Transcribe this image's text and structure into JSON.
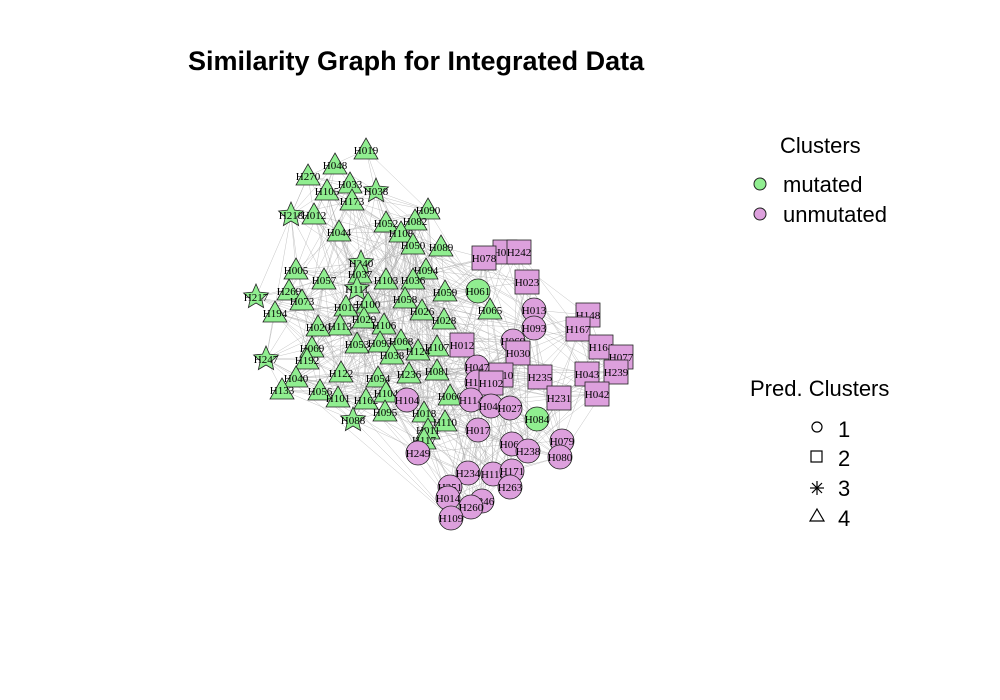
{
  "title": "Similarity Graph for Integrated Data",
  "colors": {
    "mutated": "#90EE90",
    "unmutated": "#DDA0DD",
    "edge": "#a9a9a9",
    "stroke": "#222222"
  },
  "legend_clusters": {
    "title": "Clusters",
    "items": [
      {
        "label": "mutated",
        "color": "#90EE90"
      },
      {
        "label": "unmutated",
        "color": "#DDA0DD"
      }
    ]
  },
  "legend_pred": {
    "title": "Pred. Clusters",
    "items": [
      {
        "label": "1",
        "shape": "circle"
      },
      {
        "label": "2",
        "shape": "square"
      },
      {
        "label": "3",
        "shape": "star"
      },
      {
        "label": "4",
        "shape": "triangle"
      }
    ]
  },
  "chart_data": {
    "type": "network",
    "nodes": [
      {
        "id": "H019",
        "cluster": "mutated",
        "pred": "4"
      },
      {
        "id": "H048",
        "cluster": "mutated",
        "pred": "4"
      },
      {
        "id": "H270",
        "cluster": "mutated",
        "pred": "4"
      },
      {
        "id": "H033",
        "cluster": "mutated",
        "pred": "4"
      },
      {
        "id": "H105",
        "cluster": "mutated",
        "pred": "4"
      },
      {
        "id": "H038",
        "cluster": "mutated",
        "pred": "3"
      },
      {
        "id": "H173",
        "cluster": "mutated",
        "pred": "4"
      },
      {
        "id": "H090",
        "cluster": "mutated",
        "pred": "4"
      },
      {
        "id": "H218",
        "cluster": "mutated",
        "pred": "3"
      },
      {
        "id": "H012",
        "cluster": "mutated",
        "pred": "4"
      },
      {
        "id": "H052",
        "cluster": "mutated",
        "pred": "4"
      },
      {
        "id": "H082",
        "cluster": "mutated",
        "pred": "4"
      },
      {
        "id": "H108",
        "cluster": "mutated",
        "pred": "4"
      },
      {
        "id": "H044",
        "cluster": "mutated",
        "pred": "4"
      },
      {
        "id": "H050",
        "cluster": "mutated",
        "pred": "4"
      },
      {
        "id": "H089",
        "cluster": "mutated",
        "pred": "4"
      },
      {
        "id": "H240",
        "cluster": "mutated",
        "pred": "3"
      },
      {
        "id": "H094",
        "cluster": "mutated",
        "pred": "4"
      },
      {
        "id": "H005",
        "cluster": "mutated",
        "pred": "4"
      },
      {
        "id": "H037",
        "cluster": "mutated",
        "pred": "4"
      },
      {
        "id": "H103",
        "cluster": "mutated",
        "pred": "4"
      },
      {
        "id": "H036",
        "cluster": "mutated",
        "pred": "4"
      },
      {
        "id": "H057",
        "cluster": "mutated",
        "pred": "4"
      },
      {
        "id": "H269",
        "cluster": "mutated",
        "pred": "4"
      },
      {
        "id": "H111",
        "cluster": "mutated",
        "pred": "3"
      },
      {
        "id": "H217",
        "cluster": "mutated",
        "pred": "3"
      },
      {
        "id": "H073",
        "cluster": "mutated",
        "pred": "4"
      },
      {
        "id": "H058",
        "cluster": "mutated",
        "pred": "4"
      },
      {
        "id": "H059",
        "cluster": "mutated",
        "pred": "4"
      },
      {
        "id": "H061",
        "cluster": "mutated",
        "pred": "1"
      },
      {
        "id": "H194",
        "cluster": "mutated",
        "pred": "4"
      },
      {
        "id": "H100",
        "cluster": "mutated",
        "pred": "4"
      },
      {
        "id": "H015",
        "cluster": "mutated",
        "pred": "4"
      },
      {
        "id": "H026",
        "cluster": "mutated",
        "pred": "4"
      },
      {
        "id": "H065",
        "cluster": "mutated",
        "pred": "4"
      },
      {
        "id": "H029",
        "cluster": "mutated",
        "pred": "4"
      },
      {
        "id": "H028",
        "cluster": "mutated",
        "pred": "4"
      },
      {
        "id": "H113",
        "cluster": "mutated",
        "pred": "4"
      },
      {
        "id": "H106",
        "cluster": "mutated",
        "pred": "4"
      },
      {
        "id": "H020",
        "cluster": "mutated",
        "pred": "4"
      },
      {
        "id": "H068",
        "cluster": "mutated",
        "pred": "4"
      },
      {
        "id": "H069",
        "cluster": "mutated",
        "pred": "4"
      },
      {
        "id": "H053",
        "cluster": "mutated",
        "pred": "4"
      },
      {
        "id": "H093",
        "cluster": "mutated",
        "pred": "4"
      },
      {
        "id": "H107",
        "cluster": "mutated",
        "pred": "4"
      },
      {
        "id": "H247",
        "cluster": "mutated",
        "pred": "3"
      },
      {
        "id": "H192",
        "cluster": "mutated",
        "pred": "4"
      },
      {
        "id": "H038b",
        "label": "H038",
        "cluster": "mutated",
        "pred": "4"
      },
      {
        "id": "H124",
        "cluster": "mutated",
        "pred": "4"
      },
      {
        "id": "H081",
        "cluster": "mutated",
        "pred": "4"
      },
      {
        "id": "H122",
        "cluster": "mutated",
        "pred": "4"
      },
      {
        "id": "H236",
        "cluster": "mutated",
        "pred": "4"
      },
      {
        "id": "H040",
        "cluster": "mutated",
        "pred": "4"
      },
      {
        "id": "H054",
        "cluster": "mutated",
        "pred": "4"
      },
      {
        "id": "H133",
        "cluster": "mutated",
        "pred": "4"
      },
      {
        "id": "H056",
        "cluster": "mutated",
        "pred": "4"
      },
      {
        "id": "H101",
        "cluster": "mutated",
        "pred": "4"
      },
      {
        "id": "H162",
        "cluster": "mutated",
        "pred": "4"
      },
      {
        "id": "H104",
        "cluster": "mutated",
        "pred": "4"
      },
      {
        "id": "H060",
        "cluster": "mutated",
        "pred": "4"
      },
      {
        "id": "H095",
        "cluster": "mutated",
        "pred": "4"
      },
      {
        "id": "H088",
        "cluster": "mutated",
        "pred": "3"
      },
      {
        "id": "H018",
        "cluster": "mutated",
        "pred": "4"
      },
      {
        "id": "H110",
        "cluster": "mutated",
        "pred": "4"
      },
      {
        "id": "H011",
        "cluster": "mutated",
        "pred": "4"
      },
      {
        "id": "H117",
        "cluster": "mutated",
        "pred": "4"
      },
      {
        "id": "H084",
        "cluster": "mutated",
        "pred": "1"
      },
      {
        "id": "H041",
        "cluster": "unmutated",
        "pred": "2"
      },
      {
        "id": "H242",
        "cluster": "unmutated",
        "pred": "2"
      },
      {
        "id": "H078",
        "cluster": "unmutated",
        "pred": "2"
      },
      {
        "id": "H023",
        "cluster": "unmutated",
        "pred": "2"
      },
      {
        "id": "H013",
        "cluster": "unmutated",
        "pred": "1"
      },
      {
        "id": "H148",
        "cluster": "unmutated",
        "pred": "2"
      },
      {
        "id": "H093b",
        "label": "H093",
        "cluster": "unmutated",
        "pred": "1"
      },
      {
        "id": "H167",
        "cluster": "unmutated",
        "pred": "2"
      },
      {
        "id": "H069b",
        "label": "H069",
        "cluster": "unmutated",
        "pred": "1"
      },
      {
        "id": "H012b",
        "label": "H012",
        "cluster": "unmutated",
        "pred": "2"
      },
      {
        "id": "H030",
        "cluster": "unmutated",
        "pred": "2"
      },
      {
        "id": "H164",
        "cluster": "unmutated",
        "pred": "2"
      },
      {
        "id": "H077",
        "cluster": "unmutated",
        "pred": "2"
      },
      {
        "id": "H047",
        "cluster": "unmutated",
        "pred": "1"
      },
      {
        "id": "H010",
        "cluster": "unmutated",
        "pred": "2"
      },
      {
        "id": "H235",
        "cluster": "unmutated",
        "pred": "2"
      },
      {
        "id": "H043",
        "cluster": "unmutated",
        "pred": "2"
      },
      {
        "id": "H239",
        "cluster": "unmutated",
        "pred": "2"
      },
      {
        "id": "H121",
        "cluster": "unmutated",
        "pred": "1"
      },
      {
        "id": "H102",
        "cluster": "unmutated",
        "pred": "2"
      },
      {
        "id": "H231",
        "cluster": "unmutated",
        "pred": "2"
      },
      {
        "id": "H042",
        "cluster": "unmutated",
        "pred": "2"
      },
      {
        "id": "H114",
        "cluster": "unmutated",
        "pred": "1"
      },
      {
        "id": "H104b",
        "label": "H104",
        "cluster": "unmutated",
        "pred": "1"
      },
      {
        "id": "H046",
        "cluster": "unmutated",
        "pred": "1"
      },
      {
        "id": "H027",
        "cluster": "unmutated",
        "pred": "1"
      },
      {
        "id": "H017",
        "cluster": "unmutated",
        "pred": "1"
      },
      {
        "id": "H079",
        "cluster": "unmutated",
        "pred": "1"
      },
      {
        "id": "H066",
        "cluster": "unmutated",
        "pred": "1"
      },
      {
        "id": "H238",
        "cluster": "unmutated",
        "pred": "1"
      },
      {
        "id": "H080",
        "cluster": "unmutated",
        "pred": "1"
      },
      {
        "id": "H249",
        "cluster": "unmutated",
        "pred": "1"
      },
      {
        "id": "H234",
        "cluster": "unmutated",
        "pred": "1"
      },
      {
        "id": "H118",
        "cluster": "unmutated",
        "pred": "1"
      },
      {
        "id": "H171",
        "cluster": "unmutated",
        "pred": "1"
      },
      {
        "id": "H263",
        "cluster": "unmutated",
        "pred": "1"
      },
      {
        "id": "H251",
        "cluster": "unmutated",
        "pred": "1"
      },
      {
        "id": "H014",
        "cluster": "unmutated",
        "pred": "1"
      },
      {
        "id": "H246",
        "cluster": "unmutated",
        "pred": "1"
      },
      {
        "id": "H260",
        "cluster": "unmutated",
        "pred": "1"
      },
      {
        "id": "H109",
        "cluster": "unmutated",
        "pred": "1"
      }
    ]
  }
}
